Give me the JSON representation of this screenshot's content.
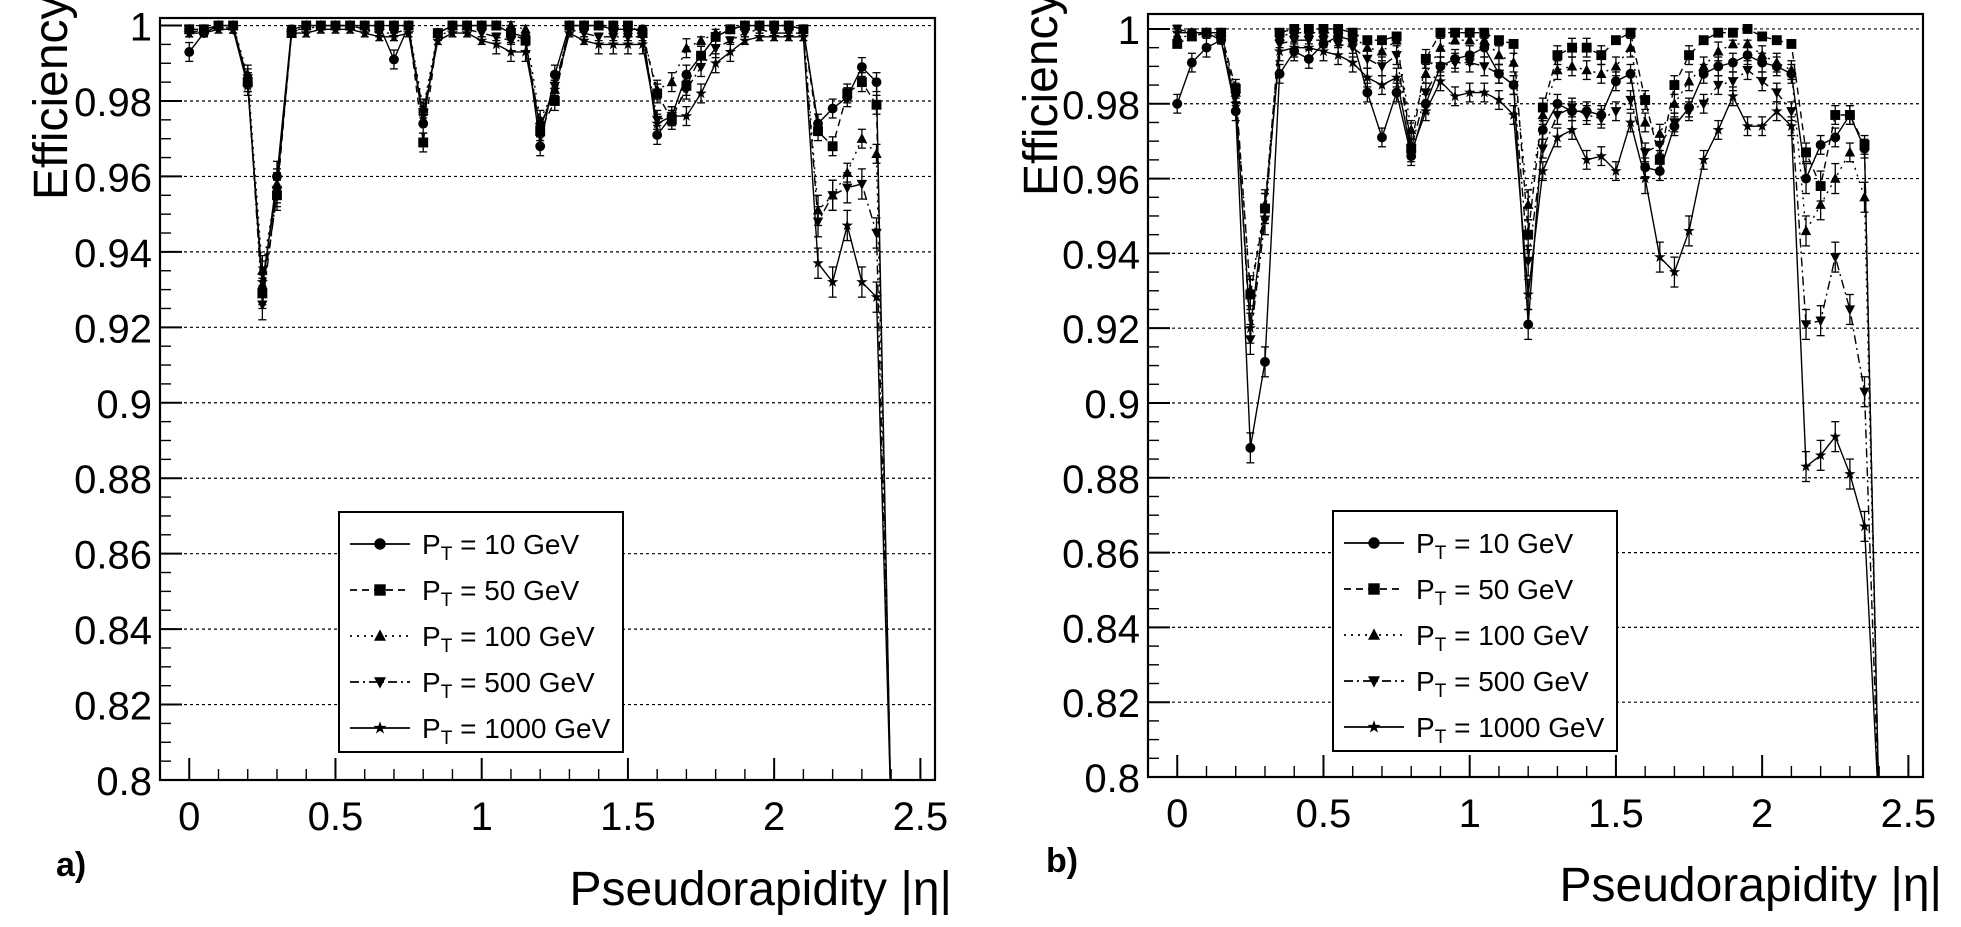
{
  "figure": {
    "legend_entries": [
      {
        "prefix": "P",
        "sub": "T",
        "suffix": " = 10 GeV",
        "marker": "circle",
        "dash": ""
      },
      {
        "prefix": "P",
        "sub": "T",
        "suffix": " = 50 GeV",
        "marker": "square",
        "dash": "7,5"
      },
      {
        "prefix": "P",
        "sub": "T",
        "suffix": " = 100 GeV",
        "marker": "triangle-up",
        "dash": "2,5"
      },
      {
        "prefix": "P",
        "sub": "T",
        "suffix": " = 500 GeV",
        "marker": "triangle-down",
        "dash": "9,4,2,4"
      },
      {
        "prefix": "P",
        "sub": "T",
        "suffix": " = 1000 GeV",
        "marker": "star",
        "dash": ""
      }
    ]
  },
  "chart_data": [
    {
      "type": "line",
      "panel_label": "a)",
      "xlabel": "Pseudorapidity |η|",
      "ylabel": "Efficiency",
      "xlim": [
        -0.1,
        2.55
      ],
      "ylim": [
        0.8,
        1.002
      ],
      "grid": "horizontal",
      "legend_position": "lower-middle",
      "x_ticks": [
        0,
        0.5,
        1,
        1.5,
        2,
        2.5
      ],
      "x_tick_labels": [
        "0",
        "0.5",
        "1",
        "1.5",
        "2",
        "2.5"
      ],
      "y_ticks": [
        0.8,
        0.82,
        0.84,
        0.86,
        0.88,
        0.9,
        0.92,
        0.94,
        0.96,
        0.98,
        1
      ],
      "y_tick_labels": [
        "0.8",
        "0.82",
        "0.84",
        "0.86",
        "0.88",
        "0.9",
        "0.92",
        "0.94",
        "0.96",
        "0.98",
        "1"
      ],
      "x": [
        0,
        0.05,
        0.1,
        0.15,
        0.2,
        0.25,
        0.3,
        0.35,
        0.4,
        0.45,
        0.5,
        0.55,
        0.6,
        0.65,
        0.7,
        0.75,
        0.8,
        0.85,
        0.9,
        0.95,
        1.0,
        1.05,
        1.1,
        1.15,
        1.2,
        1.25,
        1.3,
        1.35,
        1.4,
        1.45,
        1.5,
        1.55,
        1.6,
        1.65,
        1.7,
        1.75,
        1.8,
        1.85,
        1.9,
        1.95,
        2.0,
        2.05,
        2.1,
        2.15,
        2.2,
        2.25,
        2.3,
        2.35,
        2.4
      ],
      "series": [
        {
          "name": "P_T = 10 GeV",
          "values": [
            0.993,
            0.998,
            1.0,
            1.0,
            0.985,
            0.93,
            0.96,
            0.999,
            1.0,
            1.0,
            1.0,
            1.0,
            1.0,
            1.0,
            0.991,
            1.0,
            0.974,
            0.998,
            1.0,
            1.0,
            1.0,
            1.0,
            0.998,
            0.997,
            0.968,
            0.987,
            1.0,
            1.0,
            1.0,
            0.999,
            0.999,
            0.999,
            0.971,
            0.976,
            0.987,
            0.992,
            0.997,
            0.999,
            1.0,
            1.0,
            1.0,
            1.0,
            0.999,
            0.974,
            0.978,
            0.981,
            0.989,
            0.985,
            0.79
          ]
        },
        {
          "name": "P_T = 50 GeV",
          "values": [
            0.999,
            0.999,
            1.0,
            1.0,
            0.985,
            0.929,
            0.955,
            0.998,
            1.0,
            1.0,
            1.0,
            1.0,
            1.0,
            1.0,
            1.0,
            1.0,
            0.969,
            0.998,
            1.0,
            1.0,
            1.0,
            1.0,
            0.998,
            0.996,
            0.972,
            0.98,
            1.0,
            1.0,
            1.0,
            1.0,
            1.0,
            0.998,
            0.982,
            0.975,
            0.984,
            0.992,
            0.997,
            0.999,
            1.0,
            1.0,
            1.0,
            1.0,
            0.999,
            0.972,
            0.968,
            0.982,
            0.985,
            0.979,
            0.79
          ]
        },
        {
          "name": "P_T = 100 GeV",
          "values": [
            0.999,
            0.999,
            1.0,
            1.0,
            0.987,
            0.935,
            0.958,
            0.998,
            1.0,
            1.0,
            1.0,
            1.0,
            1.0,
            1.0,
            1.0,
            1.0,
            0.978,
            0.998,
            1.0,
            1.0,
            1.0,
            1.0,
            1.0,
            0.999,
            0.975,
            0.983,
            1.0,
            1.0,
            1.0,
            1.0,
            0.998,
            0.998,
            0.983,
            0.985,
            0.994,
            0.996,
            0.998,
            0.999,
            1.0,
            1.0,
            1.0,
            1.0,
            0.999,
            0.951,
            0.955,
            0.961,
            0.97,
            0.966,
            0.79
          ]
        },
        {
          "name": "P_T = 500 GeV",
          "values": [
            0.998,
            0.999,
            1.0,
            0.999,
            0.986,
            0.926,
            0.956,
            0.999,
            0.999,
            1.0,
            1.0,
            1.0,
            0.999,
            0.998,
            0.998,
            0.999,
            0.977,
            0.997,
            0.999,
            0.999,
            0.998,
            0.997,
            0.996,
            0.996,
            0.973,
            0.984,
            0.999,
            0.998,
            0.997,
            0.997,
            0.997,
            0.997,
            0.975,
            0.976,
            0.983,
            0.989,
            0.994,
            0.996,
            0.998,
            0.999,
            0.998,
            0.998,
            0.998,
            0.948,
            0.955,
            0.957,
            0.958,
            0.945,
            0.79
          ]
        },
        {
          "name": "P_T = 1000 GeV",
          "values": [
            0.998,
            0.998,
            0.999,
            0.999,
            0.984,
            0.932,
            0.957,
            0.998,
            0.998,
            0.999,
            0.999,
            0.999,
            0.998,
            0.997,
            0.997,
            0.998,
            0.976,
            0.996,
            0.998,
            0.998,
            0.996,
            0.995,
            0.993,
            0.993,
            0.973,
            0.983,
            0.998,
            0.996,
            0.995,
            0.995,
            0.995,
            0.995,
            0.974,
            0.976,
            0.976,
            0.982,
            0.99,
            0.993,
            0.996,
            0.997,
            0.997,
            0.997,
            0.997,
            0.937,
            0.932,
            0.947,
            0.932,
            0.928,
            0.79
          ]
        }
      ]
    },
    {
      "type": "line",
      "panel_label": "b)",
      "xlabel": "Pseudorapidity |η|",
      "ylabel": "Efficiency",
      "xlim": [
        -0.1,
        2.55
      ],
      "ylim": [
        0.8,
        1.004
      ],
      "grid": "horizontal",
      "legend_position": "lower-middle",
      "x_ticks": [
        0,
        0.5,
        1,
        1.5,
        2,
        2.5
      ],
      "x_tick_labels": [
        "0",
        "0.5",
        "1",
        "1.5",
        "2",
        "2.5"
      ],
      "y_ticks": [
        0.8,
        0.82,
        0.84,
        0.86,
        0.88,
        0.9,
        0.92,
        0.94,
        0.96,
        0.98,
        1
      ],
      "y_tick_labels": [
        "0.8",
        "0.82",
        "0.84",
        "0.86",
        "0.88",
        "0.9",
        "0.92",
        "0.94",
        "0.96",
        "0.98",
        "1"
      ],
      "x": [
        0,
        0.05,
        0.1,
        0.15,
        0.2,
        0.25,
        0.3,
        0.35,
        0.4,
        0.45,
        0.5,
        0.55,
        0.6,
        0.65,
        0.7,
        0.75,
        0.8,
        0.85,
        0.9,
        0.95,
        1.0,
        1.05,
        1.1,
        1.15,
        1.2,
        1.25,
        1.3,
        1.35,
        1.4,
        1.45,
        1.5,
        1.55,
        1.6,
        1.65,
        1.7,
        1.75,
        1.8,
        1.85,
        1.9,
        1.95,
        2.0,
        2.05,
        2.1,
        2.15,
        2.2,
        2.25,
        2.3,
        2.35,
        2.4
      ],
      "series": [
        {
          "name": "P_T = 10 GeV",
          "values": [
            0.98,
            0.991,
            0.995,
            0.997,
            0.978,
            0.888,
            0.911,
            0.988,
            0.994,
            0.992,
            0.996,
            0.998,
            0.997,
            0.983,
            0.971,
            0.983,
            0.966,
            0.98,
            0.99,
            0.992,
            0.993,
            0.995,
            0.988,
            0.985,
            0.921,
            0.973,
            0.98,
            0.978,
            0.978,
            0.977,
            0.986,
            0.988,
            0.963,
            0.962,
            0.974,
            0.979,
            0.988,
            0.99,
            0.991,
            0.993,
            0.991,
            0.99,
            0.988,
            0.96,
            0.969,
            0.971,
            0.977,
            0.968,
            0.79
          ]
        },
        {
          "name": "P_T = 50 GeV",
          "values": [
            0.996,
            0.998,
            0.999,
            0.999,
            0.984,
            0.929,
            0.952,
            0.999,
            1.0,
            1.0,
            1.0,
            1.0,
            0.999,
            0.997,
            0.997,
            0.998,
            0.968,
            0.992,
            0.999,
            0.999,
            0.999,
            0.999,
            0.997,
            0.996,
            0.945,
            0.979,
            0.993,
            0.995,
            0.995,
            0.993,
            0.997,
            0.999,
            0.981,
            0.965,
            0.985,
            0.993,
            0.997,
            0.999,
            0.999,
            1.0,
            0.998,
            0.997,
            0.996,
            0.967,
            0.958,
            0.977,
            0.977,
            0.969,
            0.79
          ]
        },
        {
          "name": "P_T = 100 GeV",
          "values": [
            0.998,
            0.998,
            0.999,
            0.999,
            0.983,
            0.93,
            0.953,
            0.998,
            0.999,
            0.999,
            0.999,
            0.999,
            0.998,
            0.995,
            0.994,
            0.997,
            0.973,
            0.988,
            0.995,
            0.997,
            0.997,
            0.997,
            0.993,
            0.991,
            0.953,
            0.977,
            0.989,
            0.99,
            0.989,
            0.988,
            0.99,
            0.995,
            0.975,
            0.972,
            0.98,
            0.986,
            0.99,
            0.994,
            0.996,
            0.996,
            0.993,
            0.991,
            0.989,
            0.946,
            0.953,
            0.96,
            0.967,
            0.955,
            0.79
          ]
        },
        {
          "name": "P_T = 500 GeV",
          "values": [
            1.0,
            0.999,
            0.999,
            0.998,
            0.982,
            0.917,
            0.949,
            0.996,
            0.997,
            0.997,
            0.997,
            0.996,
            0.995,
            0.992,
            0.99,
            0.993,
            0.968,
            0.983,
            0.99,
            0.991,
            0.991,
            0.99,
            0.988,
            0.985,
            0.938,
            0.968,
            0.977,
            0.979,
            0.977,
            0.976,
            0.978,
            0.981,
            0.967,
            0.969,
            0.975,
            0.978,
            0.98,
            0.985,
            0.986,
            0.989,
            0.986,
            0.983,
            0.978,
            0.921,
            0.922,
            0.939,
            0.925,
            0.903,
            0.79
          ]
        },
        {
          "name": "P_T = 1000 GeV",
          "values": [
            0.999,
            0.999,
            0.999,
            0.997,
            0.98,
            0.92,
            0.952,
            0.994,
            0.995,
            0.995,
            0.994,
            0.993,
            0.991,
            0.987,
            0.985,
            0.987,
            0.967,
            0.978,
            0.986,
            0.982,
            0.983,
            0.983,
            0.981,
            0.977,
            0.929,
            0.962,
            0.971,
            0.973,
            0.965,
            0.966,
            0.962,
            0.975,
            0.96,
            0.939,
            0.935,
            0.946,
            0.965,
            0.973,
            0.982,
            0.974,
            0.974,
            0.978,
            0.974,
            0.883,
            0.886,
            0.891,
            0.881,
            0.867,
            0.79
          ]
        }
      ]
    }
  ]
}
